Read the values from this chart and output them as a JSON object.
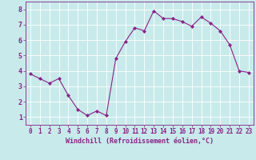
{
  "x": [
    0,
    1,
    2,
    3,
    4,
    5,
    6,
    7,
    8,
    9,
    10,
    11,
    12,
    13,
    14,
    15,
    16,
    17,
    18,
    19,
    20,
    21,
    22,
    23
  ],
  "y": [
    3.8,
    3.5,
    3.2,
    3.5,
    2.4,
    1.5,
    1.1,
    1.4,
    1.1,
    4.8,
    5.9,
    6.8,
    6.6,
    7.9,
    7.4,
    7.4,
    7.2,
    6.9,
    7.5,
    7.1,
    6.6,
    5.7,
    4.0,
    3.9
  ],
  "line_color": "#882288",
  "marker": "D",
  "marker_size": 2.0,
  "background_color": "#c8eaea",
  "grid_color": "#ffffff",
  "xlabel": "Windchill (Refroidissement éolien,°C)",
  "xlabel_color": "#882288",
  "tick_color": "#882288",
  "xlim": [
    -0.5,
    23.5
  ],
  "ylim": [
    0.5,
    8.5
  ],
  "xticks": [
    0,
    1,
    2,
    3,
    4,
    5,
    6,
    7,
    8,
    9,
    10,
    11,
    12,
    13,
    14,
    15,
    16,
    17,
    18,
    19,
    20,
    21,
    22,
    23
  ],
  "yticks": [
    1,
    2,
    3,
    4,
    5,
    6,
    7,
    8
  ],
  "tick_fontsize": 5.5,
  "xlabel_fontsize": 6.0,
  "ylabel_fontsize": 6.0
}
